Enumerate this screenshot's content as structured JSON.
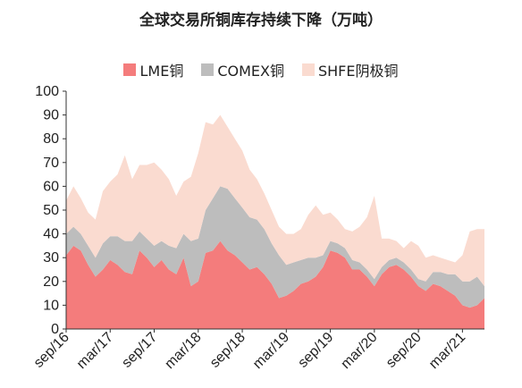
{
  "chart_data": {
    "type": "area",
    "title": "全球交易所铜库存持续下降（万吨）",
    "stacked": true,
    "ylim": [
      0,
      100
    ],
    "yticks": [
      0,
      10,
      20,
      30,
      40,
      50,
      60,
      70,
      80,
      90,
      100
    ],
    "xlim": [
      0,
      57
    ],
    "xticks": [
      {
        "label": "sep/16",
        "x": 0
      },
      {
        "label": "mar/17",
        "x": 6
      },
      {
        "label": "sep/17",
        "x": 12
      },
      {
        "label": "mar/18",
        "x": 18
      },
      {
        "label": "sep/18",
        "x": 24
      },
      {
        "label": "mar/19",
        "x": 30
      },
      {
        "label": "sep/19",
        "x": 36
      },
      {
        "label": "mar/20",
        "x": 42
      },
      {
        "label": "sep/20",
        "x": 48
      },
      {
        "label": "mar/21",
        "x": 54
      }
    ],
    "legend_position": "top",
    "x": [
      0,
      1,
      2,
      3,
      4,
      5,
      6,
      7,
      8,
      9,
      10,
      11,
      12,
      13,
      14,
      15,
      16,
      17,
      18,
      19,
      20,
      21,
      22,
      23,
      24,
      25,
      26,
      27,
      28,
      29,
      30,
      31,
      32,
      33,
      34,
      35,
      36,
      37,
      38,
      39,
      40,
      41,
      42,
      43,
      44,
      45,
      46,
      47,
      48,
      49,
      50,
      51,
      52,
      53,
      54,
      55,
      56,
      57
    ],
    "series": [
      {
        "name": "LME铜",
        "color": "#f47c7c",
        "values": [
          31,
          35,
          33,
          27,
          22,
          25,
          29,
          27,
          24,
          23,
          33,
          30,
          26,
          29,
          25,
          23,
          30,
          18,
          20,
          32,
          33,
          37,
          33,
          31,
          28,
          25,
          26,
          23,
          19,
          13,
          14,
          16,
          19,
          20,
          22,
          26,
          33,
          32,
          30,
          25,
          25,
          22,
          18,
          23,
          26,
          27,
          25,
          22,
          18,
          16,
          19,
          18,
          16,
          14,
          10,
          9,
          10,
          13
        ]
      },
      {
        "name": "COMEX铜",
        "color": "#bdbdbd",
        "values": [
          9,
          8,
          7,
          8,
          8,
          11,
          10,
          12,
          13,
          14,
          8,
          8,
          9,
          8,
          10,
          11,
          10,
          19,
          18,
          18,
          22,
          23,
          26,
          24,
          23,
          22,
          20,
          19,
          17,
          18,
          13,
          12,
          10,
          10,
          8,
          5,
          4,
          4,
          4,
          4,
          3,
          3,
          3,
          3,
          3,
          3,
          3,
          3,
          3,
          4,
          5,
          6,
          7,
          9,
          10,
          11,
          12,
          5
        ]
      },
      {
        "name": "SHFE阴极铜",
        "color": "#fadbd0",
        "values": [
          14,
          17,
          15,
          14,
          16,
          22,
          23,
          26,
          36,
          26,
          28,
          31,
          35,
          30,
          28,
          22,
          22,
          27,
          36,
          37,
          31,
          30,
          26,
          25,
          24,
          20,
          17,
          15,
          14,
          12,
          13,
          12,
          13,
          18,
          22,
          17,
          12,
          10,
          8,
          12,
          15,
          22,
          35,
          12,
          9,
          7,
          6,
          12,
          14,
          10,
          7,
          6,
          6,
          5,
          11,
          21,
          20,
          24
        ]
      }
    ]
  }
}
